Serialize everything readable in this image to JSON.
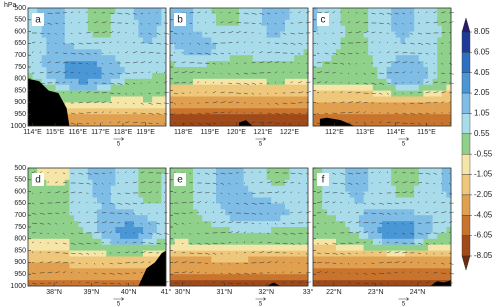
{
  "y_axis_label": "hPa",
  "colorbar": {
    "ticks": [
      8.05,
      6.05,
      4.05,
      2.05,
      1.05,
      0.55,
      -0.55,
      -1.05,
      -2.05,
      -4.05,
      -6.05,
      -8.05
    ]
  },
  "chart_data": [
    {
      "type": "contour",
      "panel_label": "a",
      "scale_label": "5",
      "ylim": [
        500,
        1000
      ],
      "yticks": [
        500,
        550,
        600,
        650,
        700,
        750,
        800,
        850,
        900,
        950,
        1000
      ],
      "xlim": [
        113.8,
        119.9
      ],
      "xticks": [
        {
          "value": 114,
          "label": "114°E"
        },
        {
          "value": 115,
          "label": "115°E"
        },
        {
          "value": 116,
          "label": "116°E"
        },
        {
          "value": 117,
          "label": "117°E"
        },
        {
          "value": 118,
          "label": "118°E"
        },
        {
          "value": 119,
          "label": "119°E"
        }
      ]
    },
    {
      "type": "contour",
      "panel_label": "b",
      "scale_label": "5",
      "ylim": [
        500,
        1000
      ],
      "yticks": [
        500,
        550,
        600,
        650,
        700,
        750,
        800,
        850,
        900,
        950,
        1000
      ],
      "xlim": [
        117.5,
        122.7
      ],
      "xticks": [
        {
          "value": 118,
          "label": "118°E"
        },
        {
          "value": 119,
          "label": "119°E"
        },
        {
          "value": 120,
          "label": "120°E"
        },
        {
          "value": 121,
          "label": "121°E"
        },
        {
          "value": 122,
          "label": "122°E"
        }
      ]
    },
    {
      "type": "contour",
      "panel_label": "c",
      "scale_label": "5",
      "ylim": [
        500,
        1000
      ],
      "yticks": [
        500,
        550,
        600,
        650,
        700,
        750,
        800,
        850,
        900,
        950,
        1000
      ],
      "xlim": [
        111.3,
        115.8
      ],
      "xticks": [
        {
          "value": 112,
          "label": "112°E"
        },
        {
          "value": 113,
          "label": "113°E"
        },
        {
          "value": 114,
          "label": "114°E"
        },
        {
          "value": 115,
          "label": "115°E"
        }
      ]
    },
    {
      "type": "contour",
      "panel_label": "d",
      "scale_label": "5",
      "ylim": [
        500,
        1000
      ],
      "yticks": [
        500,
        550,
        600,
        650,
        700,
        750,
        800,
        850,
        900,
        950,
        1000
      ],
      "xlim": [
        37.3,
        41
      ],
      "xticks": [
        {
          "value": 38,
          "label": "38°N"
        },
        {
          "value": 39,
          "label": "39°N"
        },
        {
          "value": 40,
          "label": "40°N"
        },
        {
          "value": 41,
          "label": "41°"
        }
      ]
    },
    {
      "type": "contour",
      "panel_label": "e",
      "scale_label": "5",
      "ylim": [
        500,
        1000
      ],
      "yticks": [
        500,
        550,
        600,
        650,
        700,
        750,
        800,
        850,
        900,
        950,
        1000
      ],
      "xlim": [
        29.7,
        33
      ],
      "xticks": [
        {
          "value": 30,
          "label": "30°N"
        },
        {
          "value": 31,
          "label": "31°N"
        },
        {
          "value": 32,
          "label": "32°N"
        },
        {
          "value": 33,
          "label": "33°"
        }
      ]
    },
    {
      "type": "contour",
      "panel_label": "f",
      "scale_label": "5",
      "ylim": [
        500,
        1000
      ],
      "yticks": [
        500,
        550,
        600,
        650,
        700,
        750,
        800,
        850,
        900,
        950,
        1000
      ],
      "xlim": [
        21.5,
        24.8
      ],
      "xticks": [
        {
          "value": 22,
          "label": "22°N"
        },
        {
          "value": 23,
          "label": "23°N"
        },
        {
          "value": 24,
          "label": "24°N"
        }
      ]
    }
  ]
}
